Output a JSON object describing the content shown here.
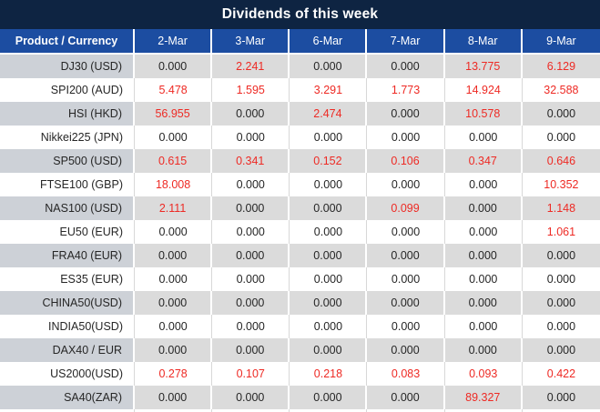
{
  "chart_data": {
    "type": "table",
    "title": "Dividends of this week",
    "row_header": "Product / Currency",
    "columns": [
      "2-Mar",
      "3-Mar",
      "6-Mar",
      "7-Mar",
      "8-Mar",
      "9-Mar"
    ],
    "rows": [
      {
        "product": "DJ30 (USD)",
        "values": [
          0.0,
          2.241,
          0.0,
          0.0,
          13.775,
          6.129
        ]
      },
      {
        "product": "SPI200 (AUD)",
        "values": [
          5.478,
          1.595,
          3.291,
          1.773,
          14.924,
          32.588
        ]
      },
      {
        "product": "HSI (HKD)",
        "values": [
          56.955,
          0.0,
          2.474,
          0.0,
          10.578,
          0.0
        ]
      },
      {
        "product": "Nikkei225 (JPN)",
        "values": [
          0.0,
          0.0,
          0.0,
          0.0,
          0.0,
          0.0
        ]
      },
      {
        "product": "SP500 (USD)",
        "values": [
          0.615,
          0.341,
          0.152,
          0.106,
          0.347,
          0.646
        ]
      },
      {
        "product": "FTSE100 (GBP)",
        "values": [
          18.008,
          0.0,
          0.0,
          0.0,
          0.0,
          10.352
        ]
      },
      {
        "product": "NAS100 (USD)",
        "values": [
          2.111,
          0.0,
          0.0,
          0.099,
          0.0,
          1.148
        ]
      },
      {
        "product": "EU50 (EUR)",
        "values": [
          0.0,
          0.0,
          0.0,
          0.0,
          0.0,
          1.061
        ]
      },
      {
        "product": "FRA40 (EUR)",
        "values": [
          0.0,
          0.0,
          0.0,
          0.0,
          0.0,
          0.0
        ]
      },
      {
        "product": "ES35 (EUR)",
        "values": [
          0.0,
          0.0,
          0.0,
          0.0,
          0.0,
          0.0
        ]
      },
      {
        "product": "CHINA50(USD)",
        "values": [
          0.0,
          0.0,
          0.0,
          0.0,
          0.0,
          0.0
        ]
      },
      {
        "product": "INDIA50(USD)",
        "values": [
          0.0,
          0.0,
          0.0,
          0.0,
          0.0,
          0.0
        ]
      },
      {
        "product": "DAX40 / EUR",
        "values": [
          0.0,
          0.0,
          0.0,
          0.0,
          0.0,
          0.0
        ]
      },
      {
        "product": "US2000(USD)",
        "values": [
          0.278,
          0.107,
          0.218,
          0.083,
          0.093,
          0.422
        ]
      },
      {
        "product": "SA40(ZAR)",
        "values": [
          0.0,
          0.0,
          0.0,
          0.0,
          89.327,
          0.0
        ]
      }
    ],
    "value_decimals": 3,
    "layout_hints": {
      "zero_values_color": "#262626",
      "nonzero_values_color": "#EE2A24",
      "title_bar_color": "#0E2442",
      "header_row_color": "#1C4DA1",
      "gray_row_color": "#DBDBDB",
      "gray_row_label_color": "#CDD1D7",
      "alternating_rows": "first data row gray, then white, alternating"
    }
  }
}
